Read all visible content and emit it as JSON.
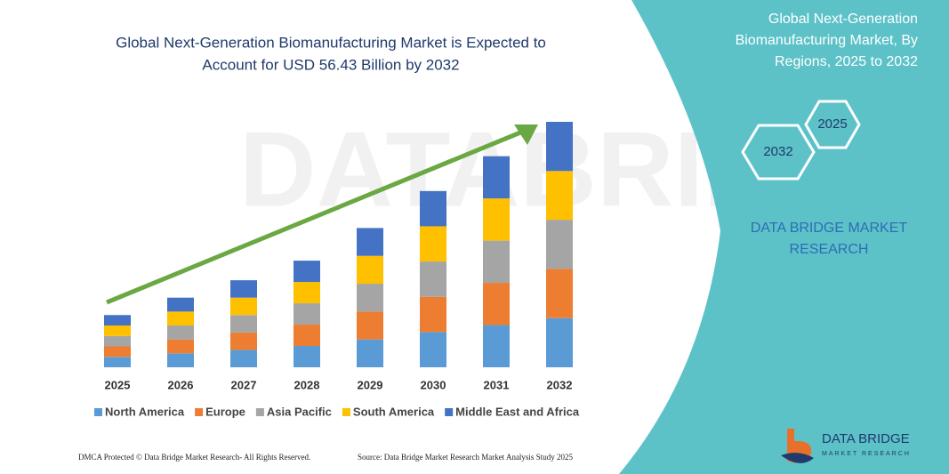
{
  "chart_data": {
    "type": "stacked_bar",
    "title": [
      "Global Next-Generation Biomanufacturing Market is Expected to",
      "Account for USD 56.43 Billion by 2032"
    ],
    "categories": [
      "2025",
      "2026",
      "2027",
      "2028",
      "2029",
      "2030",
      "2031",
      "2032"
    ],
    "series": [
      {
        "name": "North America",
        "color": "#5b9bd5",
        "values": [
          2.4,
          3.2,
          4.0,
          4.9,
          6.4,
          8.1,
          9.7,
          11.3
        ]
      },
      {
        "name": "Europe",
        "color": "#ed7d31",
        "values": [
          2.4,
          3.2,
          4.0,
          4.9,
          6.4,
          8.1,
          9.7,
          11.3
        ]
      },
      {
        "name": "Asia Pacific",
        "color": "#a5a5a5",
        "values": [
          2.4,
          3.2,
          4.0,
          4.9,
          6.4,
          8.1,
          9.7,
          11.3
        ]
      },
      {
        "name": "South America",
        "color": "#ffc000",
        "values": [
          2.4,
          3.2,
          4.0,
          4.9,
          6.4,
          8.1,
          9.7,
          11.2
        ]
      },
      {
        "name": "Middle East and Africa",
        "color": "#4472c4",
        "values": [
          2.4,
          3.2,
          4.0,
          4.9,
          6.4,
          8.1,
          9.7,
          11.3
        ]
      }
    ],
    "legend": "bottom"
  },
  "side_panel": {
    "title": [
      "Global Next-Generation",
      "Biomanufacturing Market, By",
      "Regions, 2025 to 2032"
    ],
    "hexagons": [
      "2025",
      "2032"
    ],
    "brand": [
      "DATA BRIDGE MARKET",
      "RESEARCH"
    ]
  },
  "watermark": "DATABRIDGE",
  "logo": {
    "name": "DATA BRIDGE",
    "tagline": "MARKET RESEARCH"
  },
  "footer": {
    "left": "DMCA Protected © Data Bridge Market Research- All Rights Reserved.",
    "right": "Source: Data Bridge Market Research Market Analysis Study 2025"
  }
}
